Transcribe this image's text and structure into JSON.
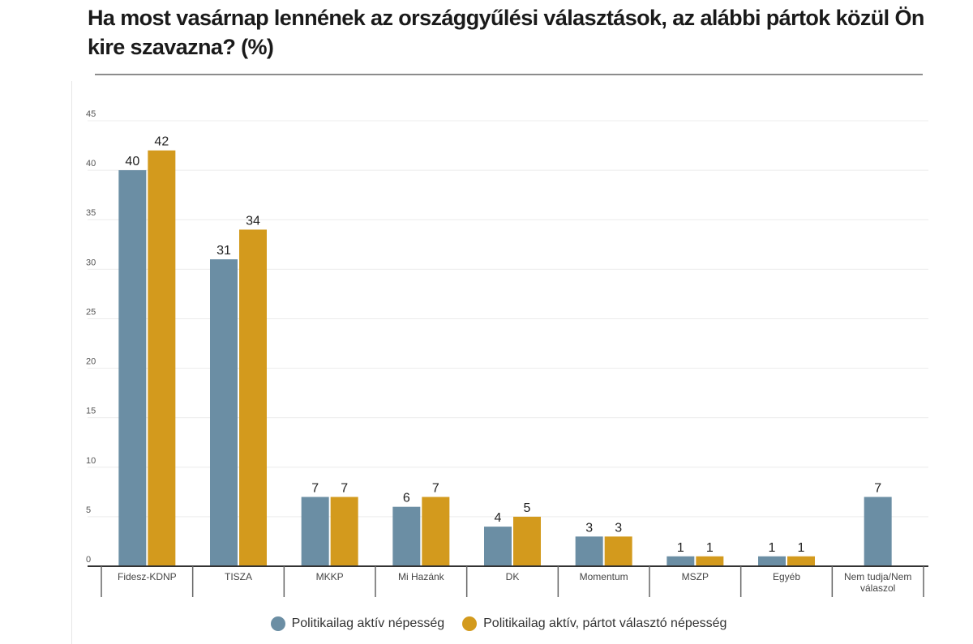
{
  "colors": {
    "series_1": "#6b8ea4",
    "series_2": "#d39a1d",
    "grid": "#ececec",
    "axis": "#333333",
    "separator": "#666666"
  },
  "chart_data": {
    "type": "bar",
    "title": "Ha most vasárnap lennének az országgyűlési választások, az alábbi pártok közül Ön kire szavazna? (%)",
    "xlabel": "",
    "ylabel": "",
    "ylim": [
      0,
      45
    ],
    "yticks": [
      0,
      5,
      10,
      15,
      20,
      25,
      30,
      35,
      40,
      45
    ],
    "grid": true,
    "legend_position": "bottom",
    "categories": [
      "Fidesz-KDNP",
      "TISZA",
      "MKKP",
      "Mi Hazánk",
      "DK",
      "Momentum",
      "MSZP",
      "Egyéb",
      "Nem tudja/Nem válaszol"
    ],
    "category_lines": [
      [
        "Fidesz-KDNP"
      ],
      [
        "TISZA"
      ],
      [
        "MKKP"
      ],
      [
        "Mi Hazánk"
      ],
      [
        "DK"
      ],
      [
        "Momentum"
      ],
      [
        "MSZP"
      ],
      [
        "Egyéb"
      ],
      [
        "Nem tudja/Nem",
        "válaszol"
      ]
    ],
    "series": [
      {
        "name": "Politikailag aktív népesség",
        "values": [
          40,
          31,
          7,
          6,
          4,
          3,
          1,
          1,
          7
        ]
      },
      {
        "name": "Politikailag aktív, pártot választó népesség",
        "values": [
          42,
          34,
          7,
          7,
          5,
          3,
          1,
          1,
          null
        ]
      }
    ]
  }
}
